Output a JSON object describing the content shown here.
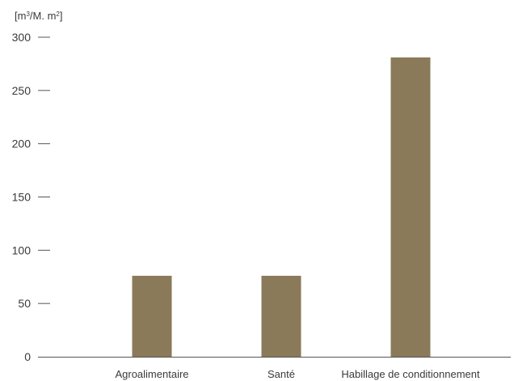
{
  "chart_data": {
    "type": "bar",
    "ylabel_parts": {
      "m": "[m",
      "sup1": "3",
      "mid": "/M. m",
      "sup2": "2",
      "end": "]"
    },
    "categories": [
      "Agroalimentaire",
      "Santé",
      "Habillage de conditionnement"
    ],
    "values": [
      76,
      76,
      281
    ],
    "ylim": [
      0,
      300
    ],
    "yticks": [
      0,
      50,
      100,
      150,
      200,
      250,
      300
    ],
    "grid": false,
    "bar_color": "#8a7a5a",
    "axis_color": "#555555"
  }
}
